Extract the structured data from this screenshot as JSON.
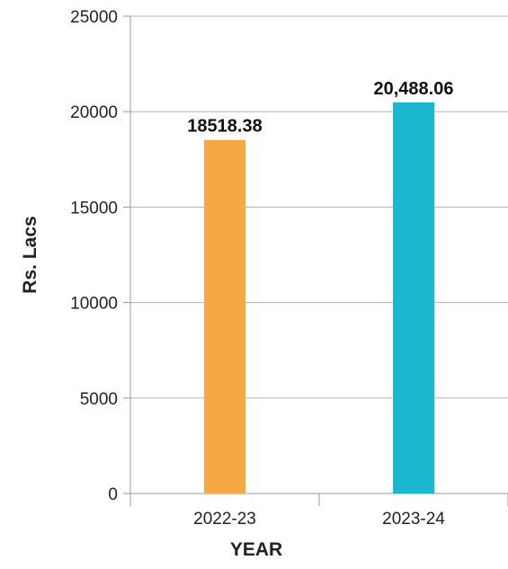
{
  "chart_data": {
    "type": "bar",
    "categories": [
      "2022-23",
      "2023-24"
    ],
    "values": [
      18518.38,
      20488.06
    ],
    "value_labels": [
      "18518.38",
      "20,488.06"
    ],
    "title": "",
    "xlabel": "YEAR",
    "ylabel": "Rs. Lacs",
    "ylim": [
      0,
      25000
    ],
    "yticks": [
      0,
      5000,
      10000,
      15000,
      20000,
      25000
    ],
    "grid": true,
    "legend": "none",
    "colors": [
      "#f5a843",
      "#1ab8cf"
    ],
    "grid_color": "#b3b3b3",
    "axis_color": "#999999"
  }
}
